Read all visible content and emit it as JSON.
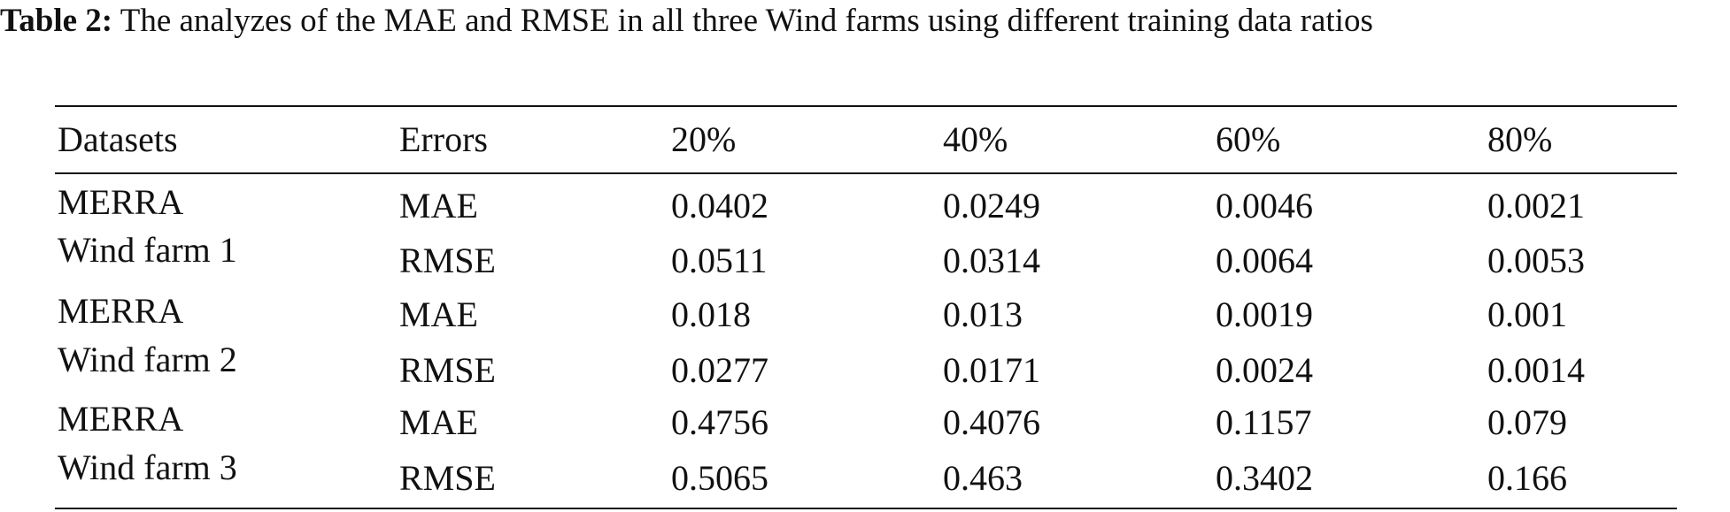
{
  "caption": {
    "label": "Table 2:",
    "text": "The analyzes of the MAE and RMSE in all three Wind farms using different training data ratios"
  },
  "table": {
    "header": [
      "Datasets",
      "Errors",
      "20%",
      "40%",
      "60%",
      "80%"
    ],
    "groups": [
      {
        "dataset": [
          "MERRA",
          "Wind farm 1"
        ],
        "rows": [
          [
            "MAE",
            "0.0402",
            "0.0249",
            "0.0046",
            "0.0021"
          ],
          [
            "RMSE",
            "0.0511",
            "0.0314",
            "0.0064",
            "0.0053"
          ]
        ]
      },
      {
        "dataset": [
          "MERRA",
          "Wind farm 2"
        ],
        "rows": [
          [
            "MAE",
            "0.018",
            "0.013",
            "0.0019",
            "0.001"
          ],
          [
            "RMSE",
            "0.0277",
            "0.0171",
            "0.0024",
            "0.0014"
          ]
        ]
      },
      {
        "dataset": [
          "MERRA",
          "Wind farm 3"
        ],
        "rows": [
          [
            "MAE",
            "0.4756",
            "0.4076",
            "0.1157",
            "0.079"
          ],
          [
            "RMSE",
            "0.5065",
            "0.463",
            "0.3402",
            "0.166"
          ]
        ]
      }
    ]
  }
}
